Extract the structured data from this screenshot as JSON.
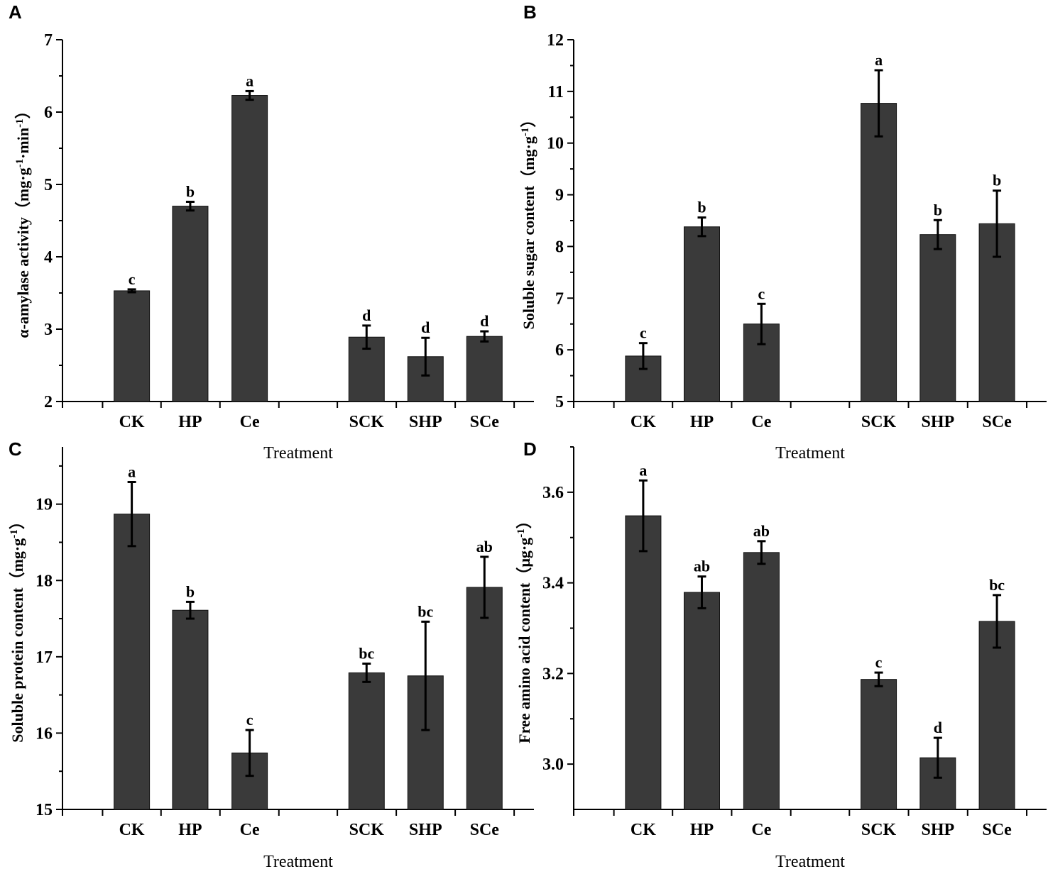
{
  "chart_data": [
    {
      "type": "bar",
      "panel": "A",
      "categories": [
        "CK",
        "HP",
        "Ce",
        "SCK",
        "SHP",
        "SCe"
      ],
      "values": [
        3.53,
        4.7,
        6.23,
        2.89,
        2.62,
        2.9
      ],
      "errors": [
        0.02,
        0.06,
        0.06,
        0.16,
        0.26,
        0.07
      ],
      "significance": [
        "c",
        "b",
        "a",
        "d",
        "d",
        "d"
      ],
      "xlabel": "Treatment",
      "ylabel_text": "α-amylase activity（mg·g",
      "ylabel_sup1": "-1",
      "ylabel_mid": "·min",
      "ylabel_sup2": "-1",
      "ylabel_end": "）",
      "ylim": [
        2,
        7
      ],
      "yticks": [
        2,
        3,
        4,
        5,
        6,
        7
      ],
      "ytick_labels": [
        "2",
        "3",
        "4",
        "5",
        "6",
        "7"
      ]
    },
    {
      "type": "bar",
      "panel": "B",
      "categories": [
        "CK",
        "HP",
        "Ce",
        "SCK",
        "SHP",
        "SCe"
      ],
      "values": [
        5.88,
        8.38,
        6.5,
        10.77,
        8.23,
        8.44
      ],
      "errors": [
        0.25,
        0.18,
        0.39,
        0.64,
        0.28,
        0.64
      ],
      "significance": [
        "c",
        "b",
        "c",
        "a",
        "b",
        "b"
      ],
      "xlabel": "Treatment",
      "ylabel_text": "Soluble sugar content（mg·g",
      "ylabel_sup1": "-1",
      "ylabel_end": "）",
      "ylim": [
        5,
        12
      ],
      "yticks": [
        5,
        6,
        7,
        8,
        9,
        10,
        11,
        12
      ],
      "ytick_labels": [
        "5",
        "6",
        "7",
        "8",
        "9",
        "10",
        "11",
        "12"
      ]
    },
    {
      "type": "bar",
      "panel": "C",
      "categories": [
        "CK",
        "HP",
        "Ce",
        "SCK",
        "SHP",
        "SCe"
      ],
      "values": [
        18.87,
        17.61,
        15.74,
        16.79,
        16.75,
        17.91
      ],
      "errors": [
        0.42,
        0.11,
        0.3,
        0.12,
        0.71,
        0.4
      ],
      "significance": [
        "a",
        "b",
        "c",
        "bc",
        "bc",
        "ab"
      ],
      "xlabel": "Treatment",
      "ylabel_text": "Soluble protein content（mg·g",
      "ylabel_sup1": "-1",
      "ylabel_end": "）",
      "ylim": [
        15,
        19.75
      ],
      "yticks": [
        15,
        16,
        17,
        18,
        19
      ],
      "ytick_labels": [
        "15",
        "16",
        "17",
        "18",
        "19"
      ]
    },
    {
      "type": "bar",
      "panel": "D",
      "categories": [
        "CK",
        "HP",
        "Ce",
        "SCK",
        "SHP",
        "SCe"
      ],
      "values": [
        3.548,
        3.379,
        3.467,
        3.187,
        3.014,
        3.315
      ],
      "errors": [
        0.078,
        0.035,
        0.025,
        0.015,
        0.044,
        0.058
      ],
      "significance": [
        "a",
        "ab",
        "ab",
        "c",
        "d",
        "bc"
      ],
      "xlabel": "Treatment",
      "ylabel_text": "Free amino acid content（μg·g",
      "ylabel_sup1": "-1",
      "ylabel_end": "）",
      "ylim": [
        2.9,
        3.7
      ],
      "yticks": [
        3.0,
        3.2,
        3.4,
        3.6
      ],
      "ytick_labels": [
        "3.0",
        "3.2",
        "3.4",
        "3.6"
      ]
    }
  ]
}
